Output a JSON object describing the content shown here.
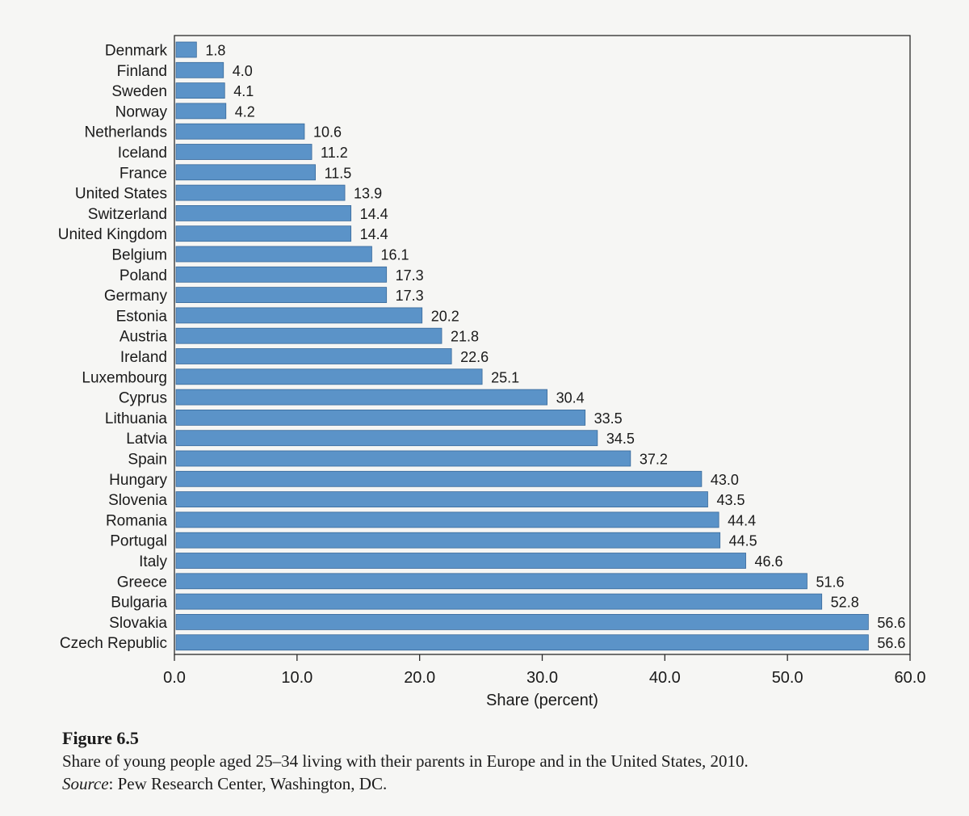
{
  "chart_data": {
    "type": "bar",
    "orientation": "horizontal",
    "categories": [
      "Denmark",
      "Finland",
      "Sweden",
      "Norway",
      "Netherlands",
      "Iceland",
      "France",
      "United States",
      "Switzerland",
      "United Kingdom",
      "Belgium",
      "Poland",
      "Germany",
      "Estonia",
      "Austria",
      "Ireland",
      "Luxembourg",
      "Cyprus",
      "Lithuania",
      "Latvia",
      "Spain",
      "Hungary",
      "Slovenia",
      "Romania",
      "Portugal",
      "Italy",
      "Greece",
      "Bulgaria",
      "Slovakia",
      "Czech Republic"
    ],
    "values": [
      1.8,
      4.0,
      4.1,
      4.2,
      10.6,
      11.2,
      11.5,
      13.9,
      14.4,
      14.4,
      16.1,
      17.3,
      17.3,
      20.2,
      21.8,
      22.6,
      25.1,
      30.4,
      33.5,
      34.5,
      37.2,
      43.0,
      43.5,
      44.4,
      44.5,
      46.6,
      51.6,
      52.8,
      56.6,
      56.6
    ],
    "value_labels": [
      "1.8",
      "4.0",
      "4.1",
      "4.2",
      "10.6",
      "11.2",
      "11.5",
      "13.9",
      "14.4",
      "14.4",
      "16.1",
      "17.3",
      "17.3",
      "20.2",
      "21.8",
      "22.6",
      "25.1",
      "30.4",
      "33.5",
      "34.5",
      "37.2",
      "43.0",
      "43.5",
      "44.4",
      "44.5",
      "46.6",
      "51.6",
      "52.8",
      "56.6",
      "56.6"
    ],
    "xlabel": "Share (percent)",
    "ylabel": "",
    "xlim": [
      0,
      60
    ],
    "xticks": [
      0,
      10,
      20,
      30,
      40,
      50,
      60
    ],
    "xtick_labels": [
      "0.0",
      "10.0",
      "20.0",
      "30.0",
      "40.0",
      "50.0",
      "60.0"
    ],
    "grid": false,
    "bar_color": "#5b93c8",
    "bar_edge_color": "#3a6a9a"
  },
  "caption": {
    "figure_number": "Figure 6.5",
    "description": "Share of young people aged 25–34 living with their parents in Europe and in the United States, 2010.",
    "source_label": "Source",
    "source_text": ": Pew Research Center, Washington, DC."
  }
}
